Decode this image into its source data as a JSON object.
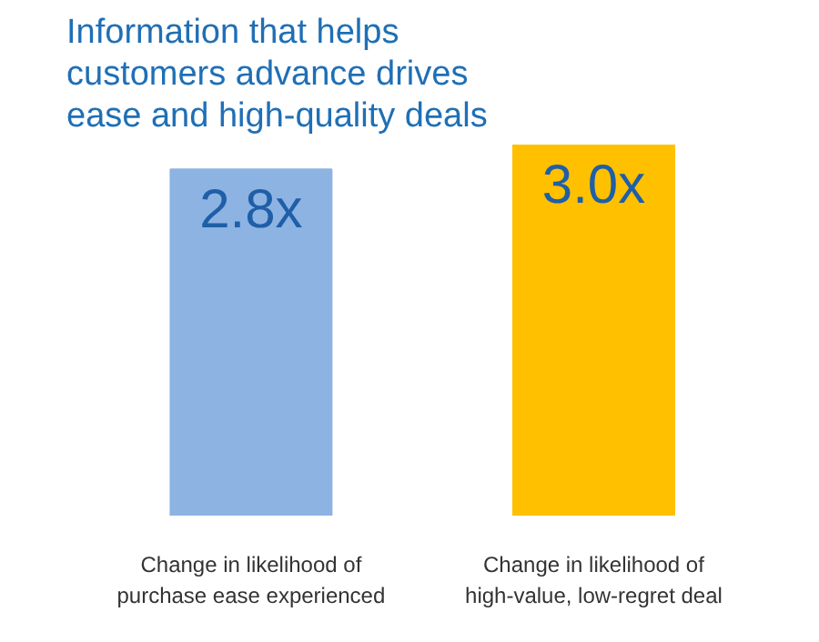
{
  "chart_data": {
    "type": "bar",
    "title": "Information that helps\ncustomers advance drives\nease and high-quality deals",
    "categories": [
      "Change in likelihood of\npurchase ease experienced",
      "Change in likelihood of\nhigh-value, low-regret deal"
    ],
    "values": [
      2.8,
      3.0
    ],
    "colors": [
      "#8db3e2",
      "#ffc000"
    ],
    "value_labels": [
      "2.8x",
      "3.0x"
    ]
  }
}
